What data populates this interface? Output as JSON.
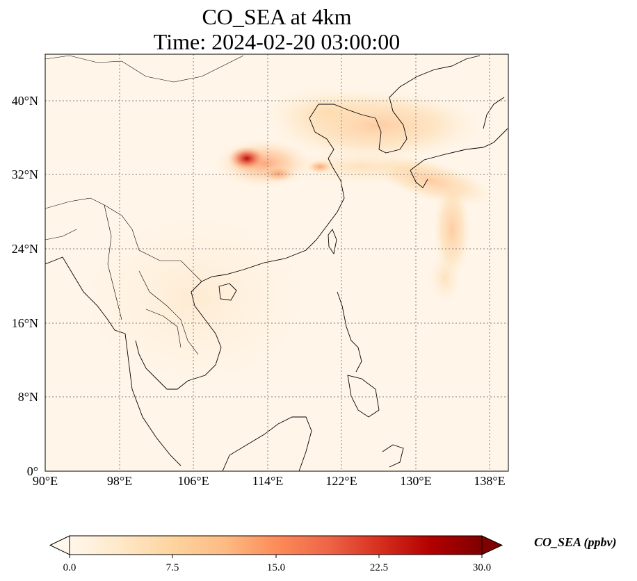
{
  "title": {
    "line1": "CO_SEA at 4km",
    "line2": "Time: 2024-02-20 03:00:00"
  },
  "axes": {
    "x_ticks": [
      "90°E",
      "98°E",
      "106°E",
      "114°E",
      "122°E",
      "130°E",
      "138°E"
    ],
    "y_ticks": [
      "0°",
      "8°N",
      "16°N",
      "24°N",
      "32°N",
      "40°N"
    ],
    "gridlines": true
  },
  "colorbar": {
    "label": "CO_SEA (ppbv)",
    "ticks": [
      "0.0",
      "7.5",
      "15.0",
      "22.5",
      "30.0"
    ],
    "colormap": "OrRd",
    "extend": "both",
    "colors": [
      "#fff7ec",
      "#fee8c8",
      "#fdd49e",
      "#fdbb84",
      "#fc8d59",
      "#ef6548",
      "#d7301f",
      "#b30000",
      "#7f0000"
    ]
  },
  "chart_data": {
    "type": "heatmap",
    "variable": "CO_SEA",
    "units": "ppbv",
    "lon_range": [
      90,
      140
    ],
    "lat_range": [
      0,
      45
    ],
    "value_range": [
      0,
      30
    ],
    "plumes": [
      {
        "lon": 111.5,
        "lat": 33.5,
        "value": 26
      },
      {
        "lon": 113.5,
        "lat": 32.5,
        "value": 14
      },
      {
        "lon": 125.5,
        "lat": 37.5,
        "value": 8
      },
      {
        "lon": 119.0,
        "lat": 38.5,
        "value": 5
      },
      {
        "lon": 131.0,
        "lat": 29.5,
        "value": 7
      },
      {
        "lon": 134.0,
        "lat": 24.5,
        "value": 5
      }
    ]
  }
}
